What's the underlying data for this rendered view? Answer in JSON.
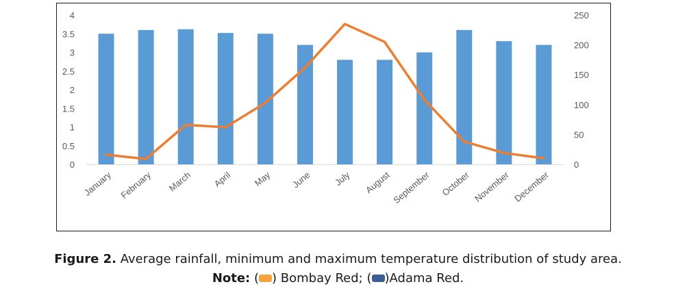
{
  "chart_data": {
    "type": "bar+line",
    "categories": [
      "January",
      "February",
      "March",
      "April",
      "May",
      "June",
      "July",
      "August",
      "September",
      "October",
      "November",
      "December"
    ],
    "series": [
      {
        "kind": "bar",
        "axis": "left",
        "color": "#5b9bd5",
        "values": [
          3.5,
          3.6,
          3.62,
          3.52,
          3.5,
          3.2,
          2.8,
          2.8,
          3.0,
          3.6,
          3.3,
          3.2
        ]
      },
      {
        "kind": "line",
        "axis": "right",
        "color": "#ed7d31",
        "values": [
          16,
          9,
          66,
          62,
          103,
          162,
          235,
          205,
          108,
          38,
          19,
          10
        ]
      }
    ],
    "y_left": {
      "min": 0,
      "max": 4,
      "ticks": [
        "0",
        "0.5",
        "1",
        "1.5",
        "2",
        "2.5",
        "3",
        "3.5",
        "4"
      ]
    },
    "y_right": {
      "min": 0,
      "max": 250,
      "ticks": [
        "0",
        "50",
        "100",
        "150",
        "200",
        "250"
      ]
    },
    "grid": false,
    "legend": "none"
  },
  "caption": {
    "label": "Figure 2.",
    "text": " Average rainfall, minimum and maximum temperature distribution of study area.",
    "note_label": "Note:",
    "note_open1": " (",
    "note_item1": ") Bombay Red; (",
    "note_item2": ")Adama Red."
  },
  "colors": {
    "bombay_red": "#f5a33a",
    "adama_red": "#3b5f91"
  }
}
